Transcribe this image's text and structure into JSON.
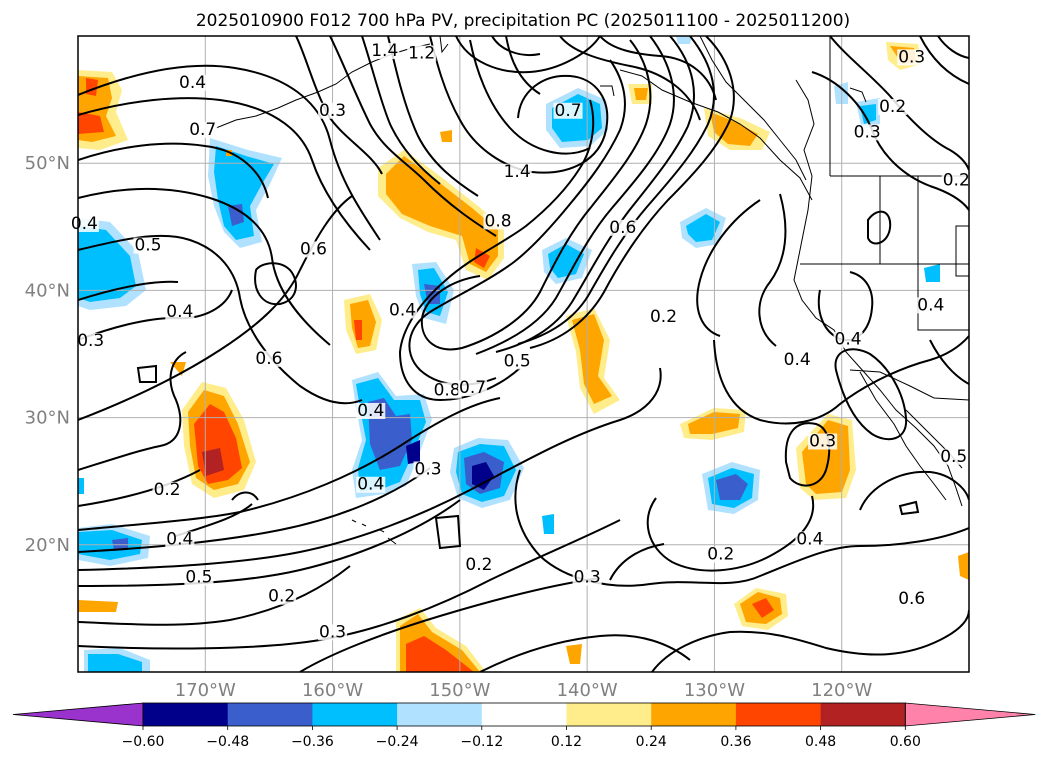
{
  "chart_data": {
    "type": "map-contour",
    "title": "2025010900 F012 700 hPa PV, precipitation PC (2025011100 - 2025011200)",
    "lon_range": [
      -180,
      -110
    ],
    "lat_range": [
      10,
      60
    ],
    "lon_ticks": [
      {
        "value": -170,
        "label": "170°W"
      },
      {
        "value": -160,
        "label": "160°W"
      },
      {
        "value": -150,
        "label": "150°W"
      },
      {
        "value": -140,
        "label": "140°W"
      },
      {
        "value": -130,
        "label": "130°W"
      },
      {
        "value": -120,
        "label": "120°W"
      }
    ],
    "lat_ticks": [
      {
        "value": 20,
        "label": "20°N"
      },
      {
        "value": 30,
        "label": "30°N"
      },
      {
        "value": 40,
        "label": "40°N"
      },
      {
        "value": 50,
        "label": "50°N"
      }
    ],
    "grid": true,
    "colorbar": {
      "extend": "both",
      "levels": [
        -0.6,
        -0.48,
        -0.36,
        -0.24,
        -0.12,
        0.12,
        0.24,
        0.36,
        0.48,
        0.6
      ],
      "tick_labels": [
        "−0.60",
        "−0.48",
        "−0.36",
        "−0.24",
        "−0.12",
        "0.12",
        "0.24",
        "0.36",
        "0.48",
        "0.60"
      ],
      "colors": [
        "#9a32cd",
        "#00008b",
        "#3a5fcd",
        "#00bfff",
        "#b0e2ff",
        "#ffffff",
        "#ffec8b",
        "#ffa500",
        "#ff4500",
        "#b22222",
        "#ff82ab"
      ]
    },
    "contour_labels": [
      {
        "text": "1.4",
        "lon": -155.9,
        "lat": 58.9
      },
      {
        "text": "1.2",
        "lon": -153.0,
        "lat": 58.7
      },
      {
        "text": "0.4",
        "lon": -171.0,
        "lat": 56.4
      },
      {
        "text": "0.7",
        "lon": -170.2,
        "lat": 52.7
      },
      {
        "text": "0.3",
        "lon": -160.0,
        "lat": 54.2
      },
      {
        "text": "0.7",
        "lon": -141.5,
        "lat": 54.2
      },
      {
        "text": "0.6",
        "lon": -137.2,
        "lat": 45.0
      },
      {
        "text": "1.4",
        "lon": -145.5,
        "lat": 49.4
      },
      {
        "text": "0.8",
        "lon": -147.0,
        "lat": 45.5
      },
      {
        "text": "0.3",
        "lon": -114.5,
        "lat": 58.4
      },
      {
        "text": "0.2",
        "lon": -116.0,
        "lat": 54.5
      },
      {
        "text": "0.3",
        "lon": -118.0,
        "lat": 52.5
      },
      {
        "text": "0.2",
        "lon": -111.0,
        "lat": 48.7
      },
      {
        "text": "0.4",
        "lon": -179.5,
        "lat": 45.3
      },
      {
        "text": "0.5",
        "lon": -174.5,
        "lat": 43.6
      },
      {
        "text": "0.6",
        "lon": -161.5,
        "lat": 43.3
      },
      {
        "text": "0.4",
        "lon": -154.5,
        "lat": 38.5
      },
      {
        "text": "0.4",
        "lon": -172.0,
        "lat": 38.4
      },
      {
        "text": "0.3",
        "lon": -179.0,
        "lat": 36.1
      },
      {
        "text": "0.6",
        "lon": -165.0,
        "lat": 34.7
      },
      {
        "text": "0.2",
        "lon": -134.0,
        "lat": 38.0
      },
      {
        "text": "0.8",
        "lon": -151.0,
        "lat": 32.2
      },
      {
        "text": "0.7",
        "lon": -149.0,
        "lat": 32.4
      },
      {
        "text": "0.5",
        "lon": -145.5,
        "lat": 34.5
      },
      {
        "text": "0.4",
        "lon": -157.0,
        "lat": 30.6
      },
      {
        "text": "0.4",
        "lon": -119.5,
        "lat": 36.2
      },
      {
        "text": "0.4",
        "lon": -113.0,
        "lat": 38.9
      },
      {
        "text": "0.4",
        "lon": -123.5,
        "lat": 34.6
      },
      {
        "text": "0.4",
        "lon": -157.0,
        "lat": 24.8
      },
      {
        "text": "0.3",
        "lon": -152.5,
        "lat": 26.0
      },
      {
        "text": "0.3",
        "lon": -121.5,
        "lat": 28.2
      },
      {
        "text": "0.2",
        "lon": -173.0,
        "lat": 24.4
      },
      {
        "text": "0.4",
        "lon": -172.0,
        "lat": 20.5
      },
      {
        "text": "0.5",
        "lon": -170.5,
        "lat": 17.5
      },
      {
        "text": "0.2",
        "lon": -164.0,
        "lat": 16.0
      },
      {
        "text": "0.3",
        "lon": -140.0,
        "lat": 17.5
      },
      {
        "text": "0.4",
        "lon": -122.5,
        "lat": 20.5
      },
      {
        "text": "0.6",
        "lon": -114.5,
        "lat": 15.8
      },
      {
        "text": "0.2",
        "lon": -129.5,
        "lat": 19.3
      },
      {
        "text": "0.2",
        "lon": -148.5,
        "lat": 18.5
      },
      {
        "text": "0.3",
        "lon": -160.0,
        "lat": 13.2
      },
      {
        "text": "0.5",
        "lon": -111.2,
        "lat": 27.0
      }
    ]
  }
}
